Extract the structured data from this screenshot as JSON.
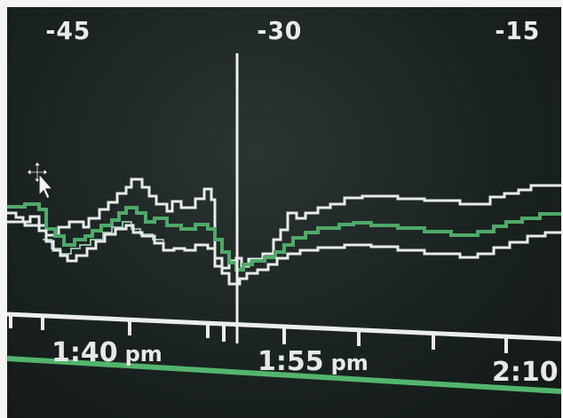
{
  "top_axis": {
    "labels": [
      "-45",
      "-30",
      "-15"
    ]
  },
  "time_axis": {
    "labels": [
      {
        "time": "1:40",
        "ampm": "pm"
      },
      {
        "time": "1:55",
        "ampm": "pm"
      },
      {
        "time": "2:10",
        "ampm": ""
      }
    ]
  },
  "colors": {
    "background": "#1b2322",
    "trace_outline": "#e8ece9",
    "trace_center": "#4fa968",
    "trace_highlight": "#9fd2ba",
    "axis": "#eceeec",
    "bottom_band": "#53b56c",
    "cursor": "#f2f2f2"
  },
  "icons": {
    "cursor": "move-cursor-icon"
  }
}
